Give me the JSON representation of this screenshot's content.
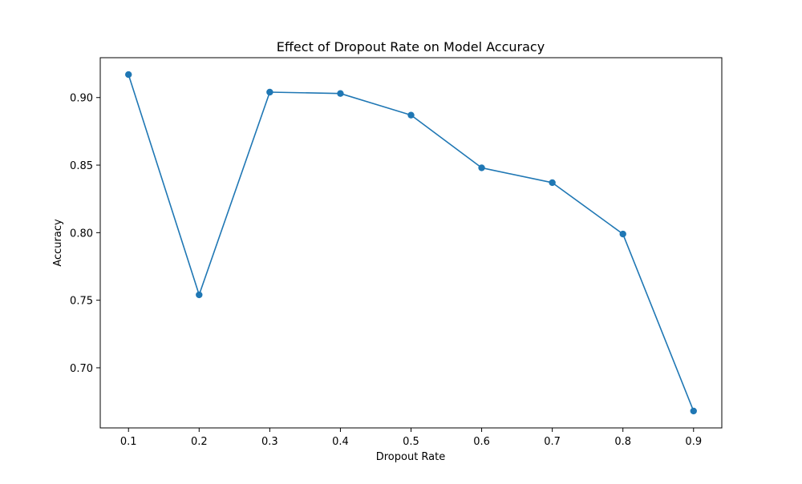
{
  "chart_data": {
    "type": "line",
    "title": "Effect of Dropout Rate on Model Accuracy",
    "xlabel": "Dropout Rate",
    "ylabel": "Accuracy",
    "x": [
      0.1,
      0.2,
      0.3,
      0.4,
      0.5,
      0.6,
      0.7,
      0.8,
      0.9
    ],
    "series": [
      {
        "values": [
          0.917,
          0.754,
          0.904,
          0.903,
          0.887,
          0.848,
          0.837,
          0.799,
          0.668
        ]
      }
    ],
    "xlim": [
      0.06,
      0.94
    ],
    "ylim": [
      0.6555,
      0.9295
    ],
    "xticks": [
      0.1,
      0.2,
      0.3,
      0.4,
      0.5,
      0.6,
      0.7,
      0.8,
      0.9
    ],
    "xtick_labels": [
      "0.1",
      "0.2",
      "0.3",
      "0.4",
      "0.5",
      "0.6",
      "0.7",
      "0.8",
      "0.9"
    ],
    "yticks": [
      0.7,
      0.75,
      0.8,
      0.85,
      0.9
    ],
    "ytick_labels": [
      "0.70",
      "0.75",
      "0.80",
      "0.85",
      "0.90"
    ],
    "grid": false,
    "marker": "circle",
    "line_color": "#1f77b4"
  }
}
